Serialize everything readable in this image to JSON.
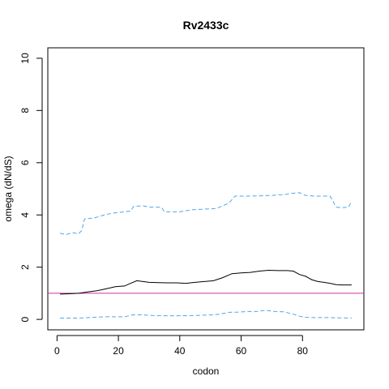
{
  "chart_data": {
    "type": "line",
    "title": "Rv2433c",
    "xlabel": "codon",
    "ylabel": "omega (dN/dS)",
    "xlim": [
      -3,
      100
    ],
    "ylim": [
      -0.4,
      10.4
    ],
    "x_ticks": [
      0,
      20,
      40,
      60,
      80
    ],
    "y_ticks": [
      0,
      2,
      4,
      6,
      8,
      10
    ],
    "grid": false,
    "reference_line": {
      "y": 1,
      "color": "#cc3399"
    },
    "series": [
      {
        "style": "solid",
        "color": "#000000",
        "points": [
          [
            1,
            0.97
          ],
          [
            4,
            0.98
          ],
          [
            7,
            1.0
          ],
          [
            10,
            1.05
          ],
          [
            13,
            1.1
          ],
          [
            16,
            1.17
          ],
          [
            19,
            1.25
          ],
          [
            22,
            1.28
          ],
          [
            24,
            1.38
          ],
          [
            26,
            1.48
          ],
          [
            28,
            1.45
          ],
          [
            30,
            1.42
          ],
          [
            33,
            1.41
          ],
          [
            36,
            1.4
          ],
          [
            39,
            1.4
          ],
          [
            42,
            1.38
          ],
          [
            45,
            1.42
          ],
          [
            48,
            1.45
          ],
          [
            51,
            1.48
          ],
          [
            54,
            1.6
          ],
          [
            57,
            1.75
          ],
          [
            60,
            1.78
          ],
          [
            63,
            1.8
          ],
          [
            66,
            1.85
          ],
          [
            69,
            1.88
          ],
          [
            72,
            1.87
          ],
          [
            75,
            1.87
          ],
          [
            77,
            1.85
          ],
          [
            79,
            1.72
          ],
          [
            81,
            1.65
          ],
          [
            83,
            1.52
          ],
          [
            85,
            1.45
          ],
          [
            87,
            1.42
          ],
          [
            89,
            1.38
          ],
          [
            91,
            1.33
          ],
          [
            93,
            1.32
          ],
          [
            96,
            1.32
          ]
        ]
      },
      {
        "style": "dashed",
        "color": "#4da6e8",
        "points": [
          [
            1,
            3.3
          ],
          [
            3,
            3.25
          ],
          [
            5,
            3.32
          ],
          [
            7,
            3.28
          ],
          [
            8,
            3.4
          ],
          [
            9,
            3.85
          ],
          [
            12,
            3.88
          ],
          [
            14,
            3.95
          ],
          [
            16,
            4.02
          ],
          [
            19,
            4.08
          ],
          [
            22,
            4.12
          ],
          [
            24,
            4.15
          ],
          [
            25,
            4.33
          ],
          [
            28,
            4.35
          ],
          [
            30,
            4.3
          ],
          [
            34,
            4.3
          ],
          [
            35,
            4.12
          ],
          [
            40,
            4.12
          ],
          [
            44,
            4.2
          ],
          [
            48,
            4.22
          ],
          [
            52,
            4.25
          ],
          [
            54,
            4.35
          ],
          [
            56,
            4.45
          ],
          [
            58,
            4.72
          ],
          [
            62,
            4.72
          ],
          [
            66,
            4.73
          ],
          [
            70,
            4.75
          ],
          [
            74,
            4.78
          ],
          [
            76,
            4.82
          ],
          [
            79,
            4.85
          ],
          [
            81,
            4.75
          ],
          [
            84,
            4.72
          ],
          [
            87,
            4.72
          ],
          [
            89,
            4.72
          ],
          [
            91,
            4.3
          ],
          [
            93,
            4.28
          ],
          [
            95,
            4.3
          ],
          [
            96,
            4.52
          ]
        ]
      },
      {
        "style": "dashed",
        "color": "#4da6e8",
        "points": [
          [
            1,
            0.05
          ],
          [
            5,
            0.05
          ],
          [
            9,
            0.06
          ],
          [
            12,
            0.08
          ],
          [
            16,
            0.1
          ],
          [
            19,
            0.1
          ],
          [
            22,
            0.1
          ],
          [
            25,
            0.18
          ],
          [
            28,
            0.17
          ],
          [
            31,
            0.15
          ],
          [
            35,
            0.14
          ],
          [
            40,
            0.14
          ],
          [
            45,
            0.15
          ],
          [
            50,
            0.17
          ],
          [
            53,
            0.2
          ],
          [
            56,
            0.27
          ],
          [
            59,
            0.28
          ],
          [
            62,
            0.3
          ],
          [
            65,
            0.3
          ],
          [
            68,
            0.35
          ],
          [
            71,
            0.3
          ],
          [
            74,
            0.29
          ],
          [
            77,
            0.2
          ],
          [
            79,
            0.12
          ],
          [
            81,
            0.08
          ],
          [
            84,
            0.07
          ],
          [
            88,
            0.07
          ],
          [
            92,
            0.06
          ],
          [
            96,
            0.05
          ]
        ]
      }
    ]
  }
}
